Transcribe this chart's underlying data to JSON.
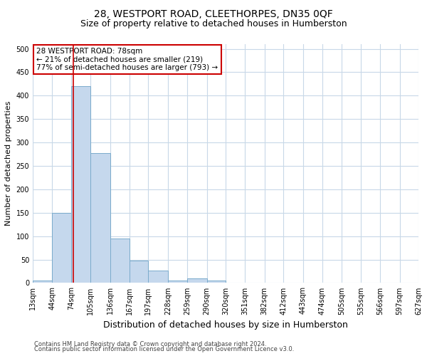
{
  "title_line1": "28, WESTPORT ROAD, CLEETHORPES, DN35 0QF",
  "title_line2": "Size of property relative to detached houses in Humberston",
  "xlabel": "Distribution of detached houses by size in Humberston",
  "ylabel": "Number of detached properties",
  "footnote1": "Contains HM Land Registry data © Crown copyright and database right 2024.",
  "footnote2": "Contains public sector information licensed under the Open Government Licence v3.0.",
  "bar_color": "#c5d8ed",
  "bar_edge_color": "#7aabcc",
  "grid_color": "#c8d8e8",
  "annotation_box_color": "#cc0000",
  "vline_color": "#cc0000",
  "annotation_line1": "28 WESTPORT ROAD: 78sqm",
  "annotation_line2": "← 21% of detached houses are smaller (219)",
  "annotation_line3": "77% of semi-detached houses are larger (793) →",
  "property_sqm": 78,
  "bin_edges": [
    13,
    44,
    74,
    105,
    136,
    167,
    197,
    228,
    259,
    290,
    320,
    351,
    382,
    412,
    443,
    474,
    505,
    535,
    566,
    597,
    627
  ],
  "bin_labels": [
    "13sqm",
    "44sqm",
    "74sqm",
    "105sqm",
    "136sqm",
    "167sqm",
    "197sqm",
    "228sqm",
    "259sqm",
    "290sqm",
    "320sqm",
    "351sqm",
    "382sqm",
    "412sqm",
    "443sqm",
    "474sqm",
    "505sqm",
    "535sqm",
    "566sqm",
    "597sqm",
    "627sqm"
  ],
  "bar_heights": [
    5,
    150,
    420,
    277,
    95,
    48,
    27,
    6,
    10,
    6,
    1,
    0,
    0,
    0,
    0,
    0,
    0,
    0,
    0,
    0
  ],
  "ylim": [
    0,
    510
  ],
  "yticks": [
    0,
    50,
    100,
    150,
    200,
    250,
    300,
    350,
    400,
    450,
    500
  ],
  "background_color": "#ffffff",
  "title1_fontsize": 10,
  "title2_fontsize": 9,
  "ylabel_fontsize": 8,
  "xlabel_fontsize": 9,
  "tick_fontsize": 7,
  "footnote_fontsize": 6,
  "annot_fontsize": 7.5
}
